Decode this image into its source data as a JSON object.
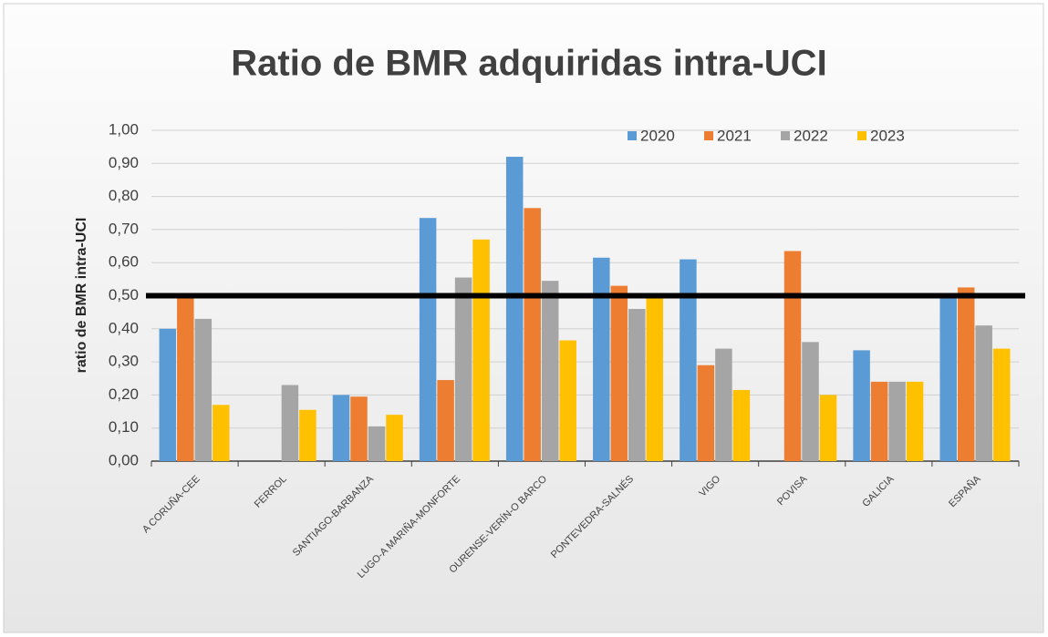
{
  "chart_data": {
    "type": "bar",
    "title": "Ratio de BMR adquiridas intra-UCI",
    "y_label": "ratio de BMR intra-UCI",
    "categories": [
      "A CORUÑA-CEE",
      "FERROL",
      "SANTIAGO-BARBANZA",
      "LUGO-A MARIÑA-MONFORTE",
      "OURENSE-VERÍN-O BARCO",
      "PONTEVEDRA-SALNÉS",
      "VIGO",
      "POVISA",
      "GALICIA",
      "ESPAÑA"
    ],
    "series": [
      {
        "name": "2020",
        "color": "#5b9bd5",
        "values": [
          0.4,
          null,
          0.2,
          0.735,
          0.92,
          0.615,
          0.61,
          null,
          0.335,
          0.505
        ]
      },
      {
        "name": "2021",
        "color": "#ed7d31",
        "values": [
          0.5,
          null,
          0.195,
          0.245,
          0.765,
          0.53,
          0.29,
          0.635,
          0.24,
          0.525
        ]
      },
      {
        "name": "2022",
        "color": "#a5a5a5",
        "values": [
          0.43,
          0.23,
          0.105,
          0.555,
          0.545,
          0.46,
          0.34,
          0.36,
          0.24,
          0.41
        ]
      },
      {
        "name": "2023",
        "color": "#ffc000",
        "values": [
          0.17,
          0.155,
          0.14,
          0.67,
          0.365,
          0.5,
          0.215,
          0.2,
          0.24,
          0.34
        ]
      }
    ],
    "reference_line": 0.5,
    "ylim": [
      0,
      1
    ],
    "yticks": [
      {
        "value": 0,
        "label": "0,00"
      },
      {
        "value": 0.1,
        "label": "0,10"
      },
      {
        "value": 0.2,
        "label": "0,20"
      },
      {
        "value": 0.3,
        "label": "0,30"
      },
      {
        "value": 0.4,
        "label": "0,40"
      },
      {
        "value": 0.5,
        "label": "0,50"
      },
      {
        "value": 0.6,
        "label": "0,60"
      },
      {
        "value": 0.7,
        "label": "0,70"
      },
      {
        "value": 0.8,
        "label": "0,80"
      },
      {
        "value": 0.9,
        "label": "0,90"
      },
      {
        "value": 1,
        "label": "1,00"
      }
    ],
    "grid": true,
    "legend": "top-right"
  }
}
